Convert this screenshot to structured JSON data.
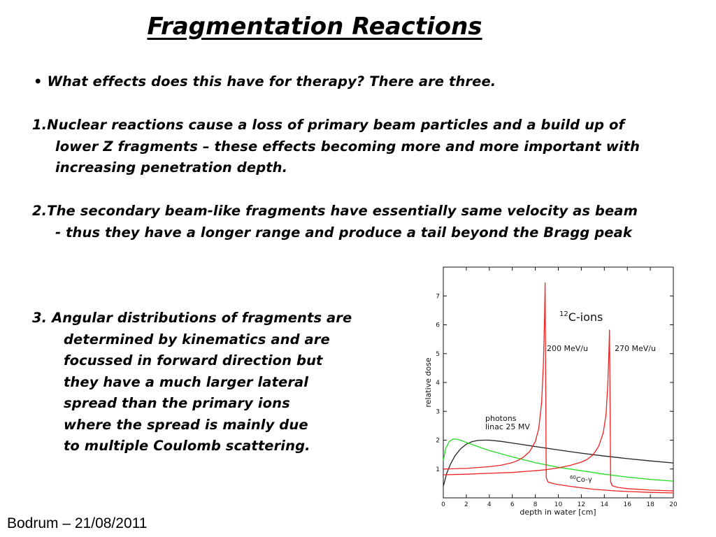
{
  "slide": {
    "title": "Fragmentation Reactions",
    "bullet": "• What effects does this have for therapy? There are three.",
    "point1": [
      "1.Nuclear reactions cause a loss of primary beam particles and a build up of",
      "lower Z fragments – these effects becoming more and more important with",
      "increasing penetration depth."
    ],
    "point2": [
      "2.The secondary beam-like fragments have essentially same velocity as beam",
      "- thus they have a longer range and produce a tail beyond the Bragg peak"
    ],
    "point3": [
      "3. Angular distributions of fragments are",
      "determined by kinematics and are",
      "focussed in forward direction but",
      "they have a much larger lateral",
      "spread than the primary ions",
      "where the spread is mainly due",
      "to multiple Coulomb scattering."
    ],
    "footer": "Bodrum – 21/08/2011"
  },
  "chart_data": {
    "type": "line",
    "xlabel": "depth in water [cm]",
    "ylabel": "relative dose",
    "xlim": [
      0,
      20
    ],
    "ylim": [
      0,
      8
    ],
    "xticks": [
      0,
      2,
      4,
      6,
      8,
      10,
      12,
      14,
      16,
      18,
      20
    ],
    "yticks": [
      1,
      2,
      3,
      4,
      5,
      6,
      7
    ],
    "annotations": {
      "ions_mass": "12",
      "ions_label": "C-ions",
      "peak1_label": "200 MeV/u",
      "peak2_label": "270 MeV/u",
      "photons_line1": "photons",
      "photons_line2": "linac 25 MV",
      "cobalt_mass": "60",
      "cobalt_label": "Co-γ"
    },
    "colors": {
      "ions": "#ee2222",
      "photons": "#222222",
      "cobalt": "#22dd22"
    },
    "series": [
      {
        "key": "photons",
        "x": [
          0,
          0.3,
          0.6,
          1,
          1.5,
          2,
          2.5,
          3,
          3.5,
          4,
          5,
          6,
          8,
          10,
          12,
          14,
          16,
          18,
          20
        ],
        "y": [
          0.4,
          0.85,
          1.15,
          1.45,
          1.7,
          1.86,
          1.95,
          1.99,
          2.0,
          2.0,
          1.96,
          1.9,
          1.78,
          1.66,
          1.55,
          1.45,
          1.36,
          1.28,
          1.21
        ]
      },
      {
        "key": "cobalt",
        "x": [
          0,
          0.2,
          0.5,
          0.8,
          1,
          1.5,
          2,
          3,
          4,
          6,
          8,
          10,
          12,
          14,
          16,
          18,
          20
        ],
        "y": [
          1.3,
          1.7,
          1.95,
          2.03,
          2.04,
          2.0,
          1.92,
          1.78,
          1.64,
          1.42,
          1.22,
          1.06,
          0.94,
          0.82,
          0.72,
          0.64,
          0.58
        ]
      },
      {
        "key": "ions",
        "x": [
          0,
          2,
          4,
          5,
          6,
          6.5,
          7,
          7.5,
          8,
          8.3,
          8.55,
          8.7,
          8.8,
          8.85,
          8.9,
          8.95,
          9.1,
          9.5,
          10,
          11,
          12,
          13,
          14,
          15,
          16,
          18,
          20
        ],
        "y": [
          1.0,
          1.02,
          1.08,
          1.13,
          1.22,
          1.3,
          1.42,
          1.6,
          1.95,
          2.4,
          3.3,
          4.6,
          6.2,
          7.45,
          4.2,
          0.7,
          0.55,
          0.5,
          0.46,
          0.4,
          0.35,
          0.3,
          0.27,
          0.24,
          0.22,
          0.19,
          0.17
        ]
      },
      {
        "key": "ions",
        "x": [
          0,
          2,
          4,
          6,
          8,
          9,
          10,
          11,
          12,
          12.5,
          13,
          13.5,
          13.9,
          14.15,
          14.3,
          14.4,
          14.45,
          14.5,
          14.55,
          14.7,
          15.2,
          16,
          18,
          20
        ],
        "y": [
          0.8,
          0.82,
          0.85,
          0.88,
          0.94,
          0.98,
          1.04,
          1.12,
          1.24,
          1.33,
          1.48,
          1.78,
          2.25,
          2.9,
          3.9,
          5.1,
          5.82,
          3.2,
          0.55,
          0.42,
          0.36,
          0.32,
          0.27,
          0.24
        ]
      }
    ]
  }
}
